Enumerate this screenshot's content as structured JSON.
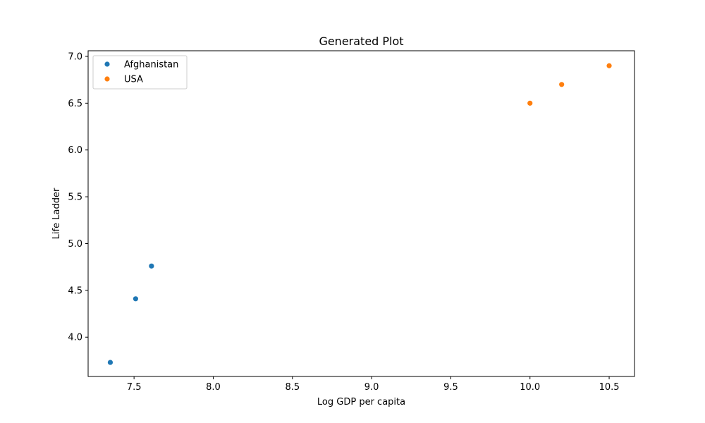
{
  "chart_data": {
    "type": "scatter",
    "title": "Generated Plot",
    "xlabel": "Log GDP per capita",
    "ylabel": "Life Ladder",
    "xlim": [
      7.21,
      10.66
    ],
    "ylim": [
      3.58,
      7.06
    ],
    "xticks": [
      "7.5",
      "8.0",
      "8.5",
      "9.0",
      "9.5",
      "10.0",
      "10.5"
    ],
    "yticks": [
      "4.0",
      "4.5",
      "5.0",
      "5.5",
      "6.0",
      "6.5",
      "7.0"
    ],
    "grid": false,
    "legend_position": "top-left",
    "series": [
      {
        "name": "Afghanistan",
        "color": "#1f77b4",
        "points": [
          {
            "x": 7.35,
            "y": 3.73
          },
          {
            "x": 7.51,
            "y": 4.41
          },
          {
            "x": 7.61,
            "y": 4.76
          }
        ]
      },
      {
        "name": "USA",
        "color": "#ff7f0e",
        "points": [
          {
            "x": 10.0,
            "y": 6.5
          },
          {
            "x": 10.2,
            "y": 6.7
          },
          {
            "x": 10.5,
            "y": 6.9
          }
        ]
      }
    ]
  }
}
